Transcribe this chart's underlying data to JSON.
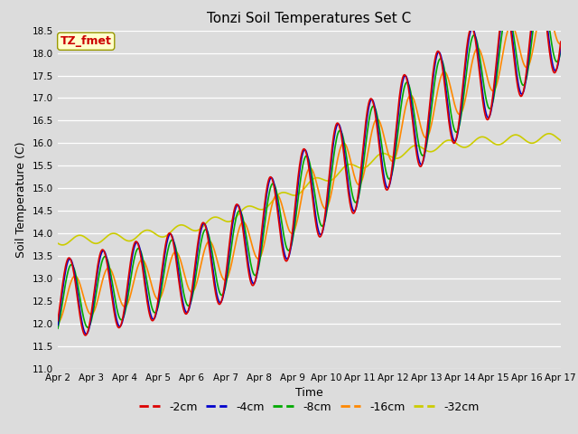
{
  "title": "Tonzi Soil Temperatures Set C",
  "xlabel": "Time",
  "ylabel": "Soil Temperature (C)",
  "ylim": [
    11.0,
    18.5
  ],
  "xlim_days": [
    2,
    17
  ],
  "colors": {
    "-2cm": "#dd0000",
    "-4cm": "#0000cc",
    "-8cm": "#00aa00",
    "-16cm": "#ff8800",
    "-32cm": "#cccc00"
  },
  "legend_labels": [
    "-2cm",
    "-4cm",
    "-8cm",
    "-16cm",
    "-32cm"
  ],
  "annotation_text": "TZ_fmet",
  "annotation_color": "#cc0000",
  "annotation_bg": "#ffffcc",
  "background_color": "#dcdcdc",
  "grid_color": "white",
  "tick_labels": [
    "Apr 2",
    "Apr 3",
    "Apr 4",
    "Apr 5",
    "Apr 6",
    "Apr 7",
    "Apr 8",
    "Apr 9",
    "Apr 10",
    "Apr 11",
    "Apr 12",
    "Apr 13",
    "Apr 14",
    "Apr 15",
    "Apr 16",
    "Apr 17"
  ],
  "tick_positions": [
    2,
    3,
    4,
    5,
    6,
    7,
    8,
    9,
    10,
    11,
    12,
    13,
    14,
    15,
    16,
    17
  ],
  "yticks": [
    11.0,
    11.5,
    12.0,
    12.5,
    13.0,
    13.5,
    14.0,
    14.5,
    15.0,
    15.5,
    16.0,
    16.5,
    17.0,
    17.5,
    18.0,
    18.5
  ],
  "linewidth": 1.2
}
